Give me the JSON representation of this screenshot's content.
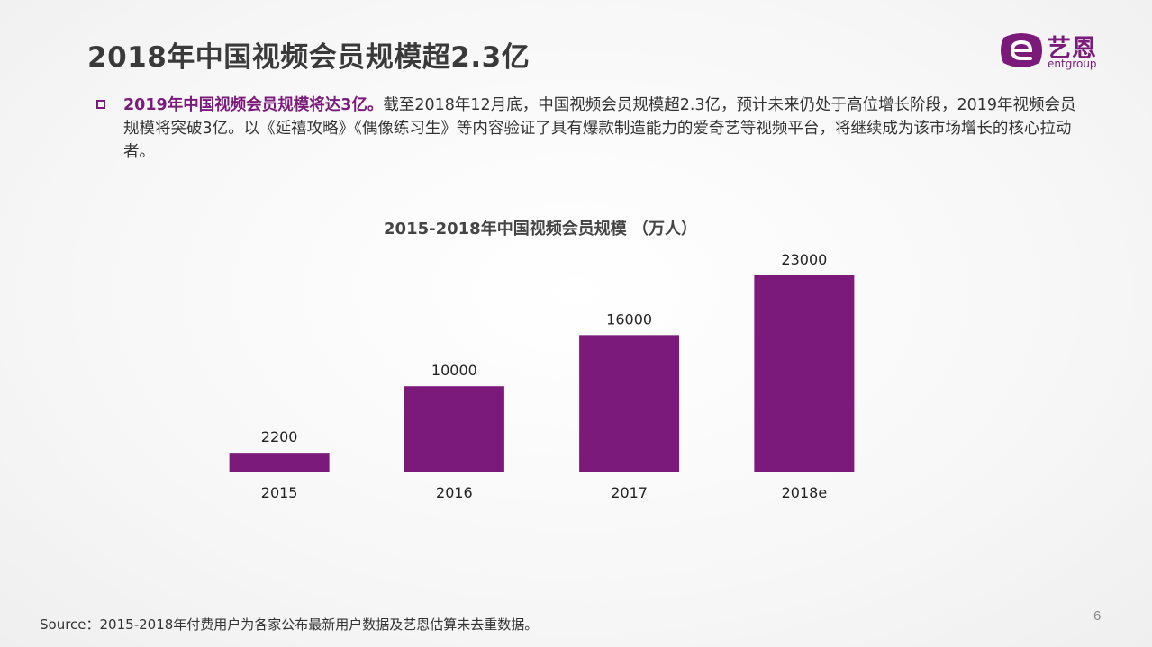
{
  "slide": {
    "title": "2018年中国视频会员规模超2.3亿",
    "highlight": "2019年中国视频会员规模将达3亿。",
    "body": "截至2018年12月底，中国视频会员规模超2.3亿，预计未来仍处于高位增长阶段，2019年视频会员规模将突破3亿。以《延禧攻略》《偶像练习生》等内容验证了具有爆款制造能力的爱奇艺等视频平台，将继续成为该市场增长的核心拉动者。",
    "source": "Source：2015-2018年付费用户为各家公布最新用户数据及艺恩估算未去重数据。",
    "page_number": "6"
  },
  "logo": {
    "cn": "艺恩",
    "en": "entgroup",
    "color": "#7b1a7b"
  },
  "colors": {
    "bar": "#7b1a7b",
    "accent": "#7b1a7b"
  },
  "chart_data": {
    "type": "bar",
    "title": "2015-2018年中国视频会员规模 （万人）",
    "categories": [
      "2015",
      "2016",
      "2017",
      "2018e"
    ],
    "values": [
      2200,
      10000,
      16000,
      23000
    ],
    "data_labels": [
      "2200",
      "10000",
      "16000",
      "23000"
    ],
    "xlabel": "",
    "ylabel": "",
    "ylim": [
      0,
      23000
    ],
    "grid": false,
    "legend": "none"
  }
}
